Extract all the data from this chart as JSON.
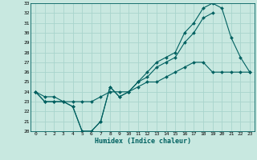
{
  "xlabel": "Humidex (Indice chaleur)",
  "background_color": "#c8e8e0",
  "grid_color": "#a8d4cc",
  "line_color": "#006060",
  "x_hours": [
    0,
    1,
    2,
    3,
    4,
    5,
    6,
    7,
    8,
    9,
    10,
    11,
    12,
    13,
    14,
    15,
    16,
    17,
    18,
    19,
    20,
    21,
    22,
    23
  ],
  "line_max": [
    24,
    23,
    23,
    23,
    22.5,
    20,
    20,
    21,
    24.5,
    23.5,
    24,
    25,
    26,
    27,
    27.5,
    28,
    30,
    31,
    32.5,
    33,
    32.5,
    29.5,
    27.5,
    26
  ],
  "line_avg": [
    24,
    23,
    23,
    23,
    22.5,
    20,
    20,
    21,
    24.5,
    23.5,
    24,
    25,
    25.5,
    26.5,
    27,
    27.5,
    29,
    30,
    31.5,
    32,
    null,
    null,
    null,
    null
  ],
  "line_min": [
    24,
    23.5,
    23.5,
    23,
    23,
    23,
    23,
    23.5,
    24,
    24,
    24,
    24.5,
    25,
    25,
    25.5,
    26,
    26.5,
    27,
    27,
    26,
    26,
    26,
    26,
    26
  ],
  "ylim": [
    20,
    33
  ],
  "xlim": [
    -0.5,
    23.5
  ],
  "yticks": [
    20,
    21,
    22,
    23,
    24,
    25,
    26,
    27,
    28,
    29,
    30,
    31,
    32,
    33
  ],
  "xticks": [
    0,
    1,
    2,
    3,
    4,
    5,
    6,
    7,
    8,
    9,
    10,
    11,
    12,
    13,
    14,
    15,
    16,
    17,
    18,
    19,
    20,
    21,
    22,
    23
  ]
}
